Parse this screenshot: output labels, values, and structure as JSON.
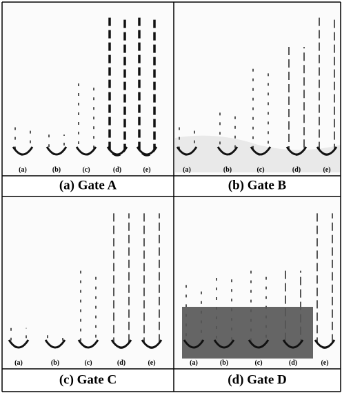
{
  "panels": [
    {
      "caption": "(a) Gate A",
      "labels": [
        "(a)",
        "(b)",
        "(c)",
        "(d)",
        "(e)"
      ]
    },
    {
      "caption": "(b) Gate B",
      "labels": [
        "(a)",
        "(b)",
        "(c)",
        "(d)",
        "(e)"
      ]
    },
    {
      "caption": "(c) Gate C",
      "labels": [
        "(a)",
        "(b)",
        "(c)",
        "(d)",
        "(e)"
      ]
    },
    {
      "caption": "(d) Gate D",
      "labels": [
        "(a)",
        "(b)",
        "(c)",
        "(d)",
        "(e)"
      ]
    }
  ]
}
